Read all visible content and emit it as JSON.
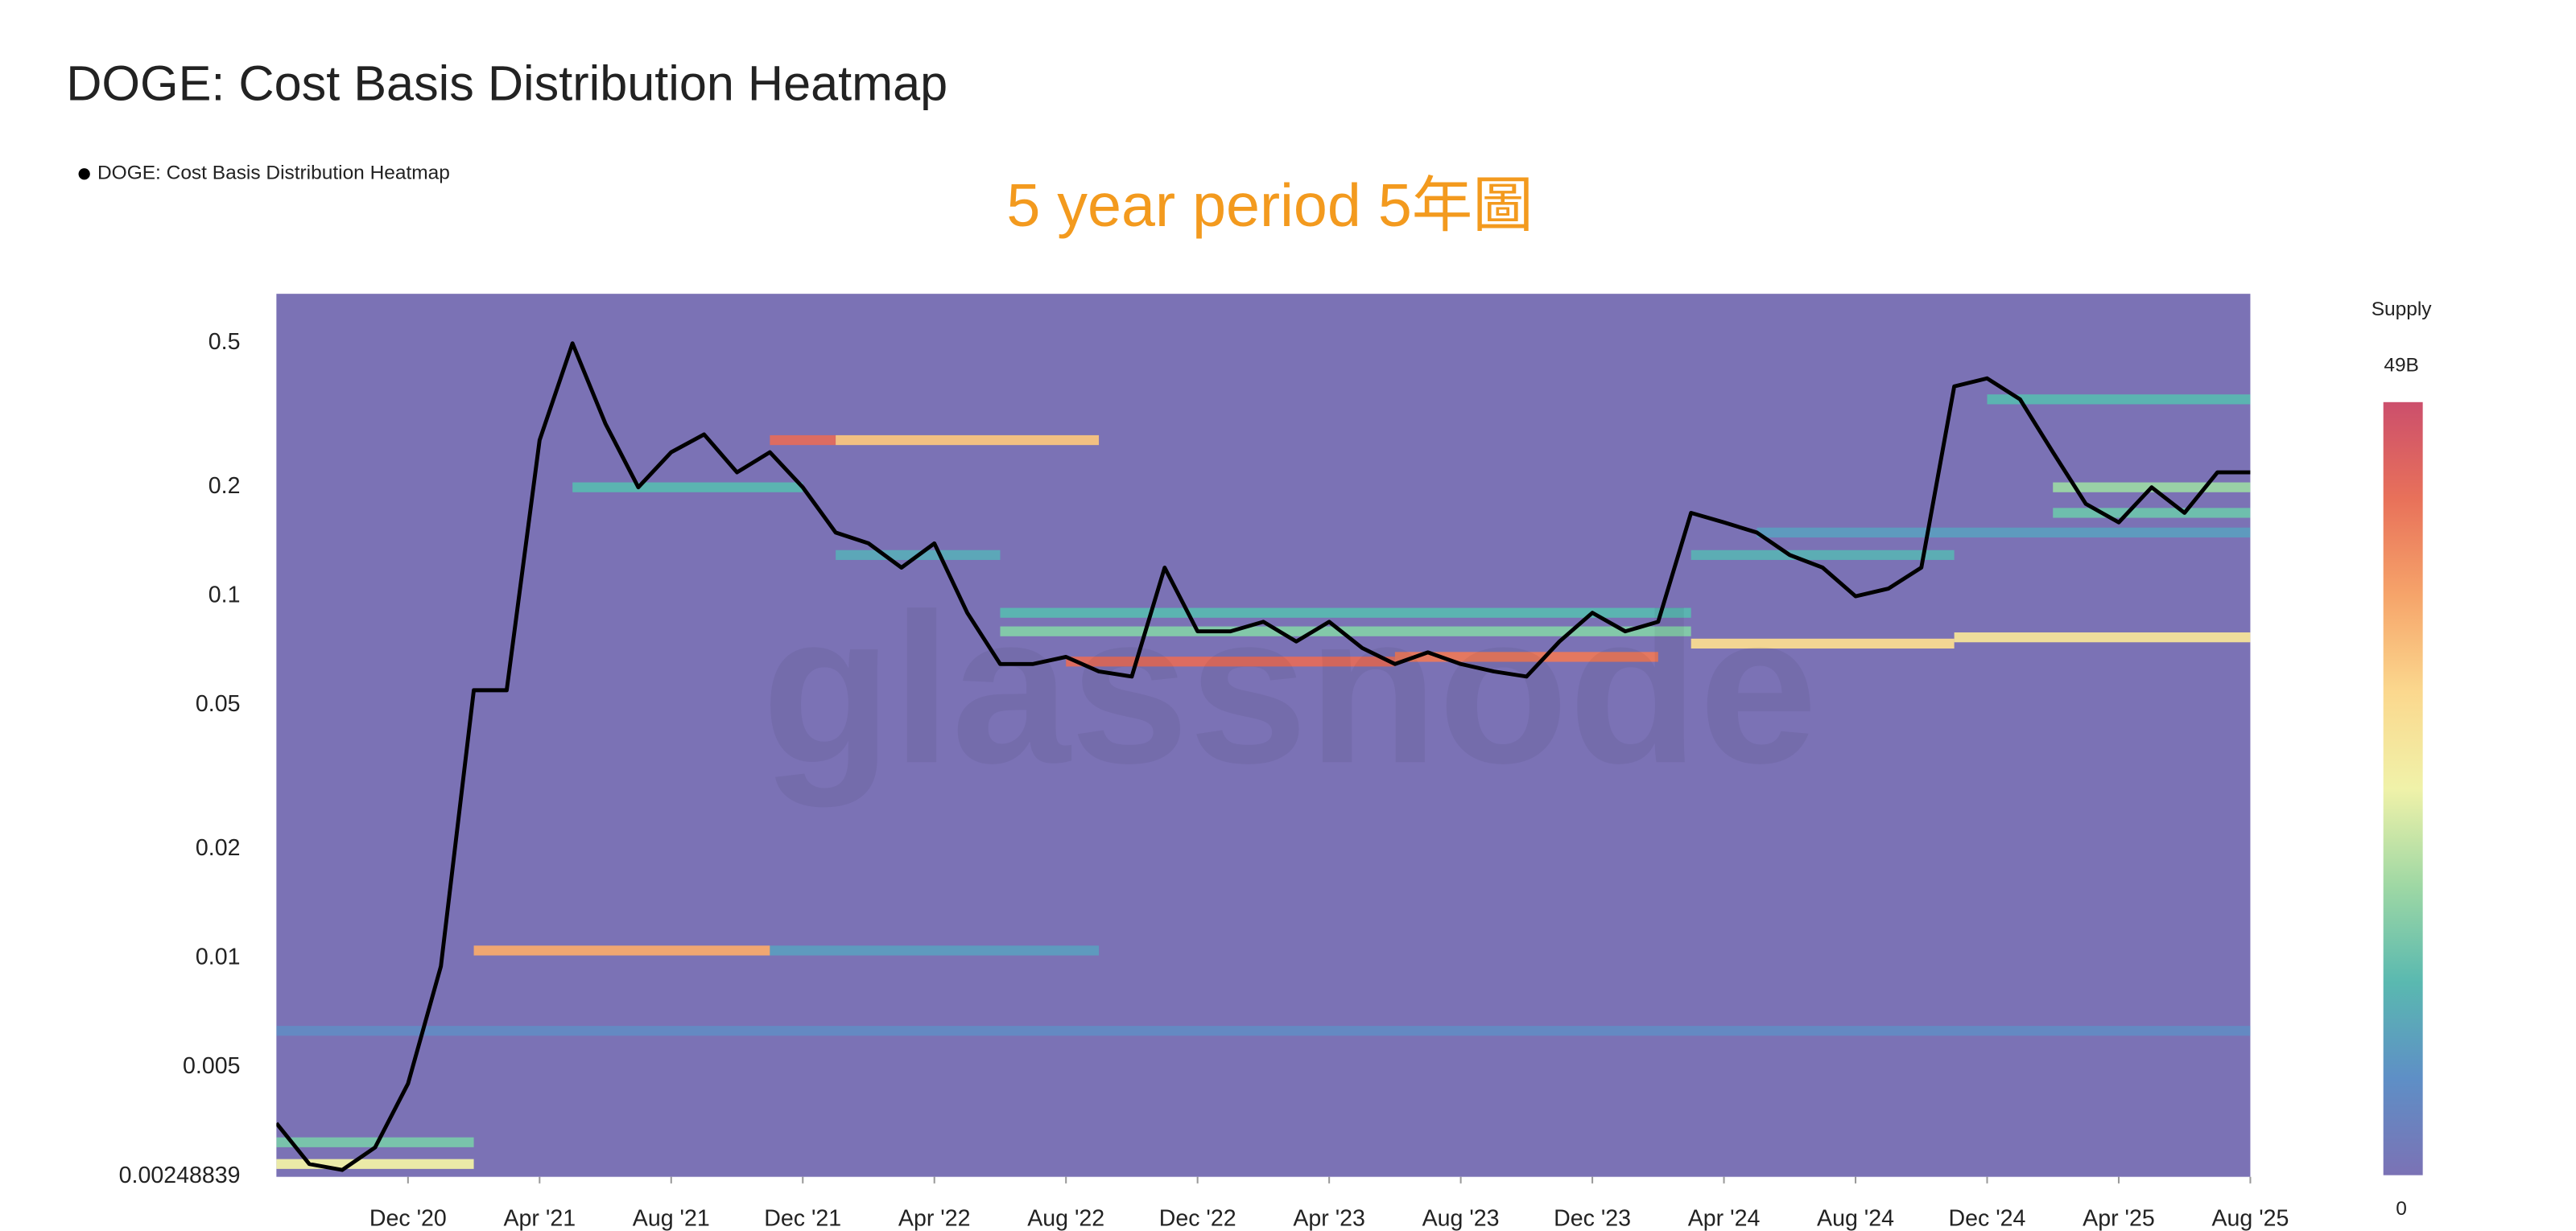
{
  "chart_data": {
    "type": "heatmap",
    "title": "DOGE: Cost Basis Distribution Heatmap",
    "annotation": "5 year period 5年圖",
    "watermark": "glassnode",
    "log_y": true,
    "background_color": "#7b72b5",
    "x": [
      "2020-08",
      "2020-09",
      "2020-10",
      "2020-11",
      "2020-12",
      "2021-01",
      "2021-02",
      "2021-03",
      "2021-04",
      "2021-05",
      "2021-06",
      "2021-07",
      "2021-08",
      "2021-09",
      "2021-10",
      "2021-11",
      "2021-12",
      "2022-01",
      "2022-02",
      "2022-03",
      "2022-04",
      "2022-05",
      "2022-06",
      "2022-07",
      "2022-08",
      "2022-09",
      "2022-10",
      "2022-11",
      "2022-12",
      "2023-01",
      "2023-02",
      "2023-03",
      "2023-04",
      "2023-05",
      "2023-06",
      "2023-07",
      "2023-08",
      "2023-09",
      "2023-10",
      "2023-11",
      "2023-12",
      "2024-01",
      "2024-02",
      "2024-03",
      "2024-04",
      "2024-05",
      "2024-06",
      "2024-07",
      "2024-08",
      "2024-09",
      "2024-10",
      "2024-11",
      "2024-12",
      "2025-01",
      "2025-02",
      "2025-03",
      "2025-04",
      "2025-05",
      "2025-06",
      "2025-07",
      "2025-08"
    ],
    "series": [
      {
        "name": "DOGE: Cost Basis Distribution Heatmap",
        "color": "#000000",
        "values": [
          0.0035,
          0.0027,
          0.0026,
          0.003,
          0.0045,
          0.0095,
          0.055,
          0.055,
          0.27,
          0.5,
          0.3,
          0.2,
          0.25,
          0.28,
          0.22,
          0.25,
          0.2,
          0.15,
          0.14,
          0.12,
          0.14,
          0.09,
          0.065,
          0.065,
          0.068,
          0.062,
          0.06,
          0.12,
          0.08,
          0.08,
          0.085,
          0.075,
          0.085,
          0.072,
          0.065,
          0.07,
          0.065,
          0.062,
          0.06,
          0.075,
          0.09,
          0.08,
          0.085,
          0.17,
          0.16,
          0.15,
          0.13,
          0.12,
          0.1,
          0.105,
          0.12,
          0.38,
          0.4,
          0.35,
          0.25,
          0.18,
          0.16,
          0.2,
          0.17,
          0.22,
          0.22
        ]
      }
    ],
    "bands": [
      {
        "start": "2020-08",
        "end": "2025-08",
        "price": 0.0063,
        "supply": 5000000000
      },
      {
        "start": "2020-08",
        "end": "2021-02",
        "price": 0.0027,
        "supply": 25000000000
      },
      {
        "start": "2020-08",
        "end": "2021-02",
        "price": 0.0031,
        "supply": 15000000000
      },
      {
        "start": "2021-02",
        "end": "2021-11",
        "price": 0.0105,
        "supply": 36000000000
      },
      {
        "start": "2021-11",
        "end": "2022-09",
        "price": 0.0105,
        "supply": 8000000000
      },
      {
        "start": "2021-05",
        "end": "2021-12",
        "price": 0.2,
        "supply": 12000000000
      },
      {
        "start": "2021-11",
        "end": "2022-01",
        "price": 0.27,
        "supply": 44000000000
      },
      {
        "start": "2022-01",
        "end": "2022-09",
        "price": 0.27,
        "supply": 33000000000
      },
      {
        "start": "2022-01",
        "end": "2022-06",
        "price": 0.13,
        "supply": 10000000000
      },
      {
        "start": "2022-06",
        "end": "2024-03",
        "price": 0.09,
        "supply": 12000000000
      },
      {
        "start": "2022-06",
        "end": "2024-03",
        "price": 0.08,
        "supply": 16000000000
      },
      {
        "start": "2022-08",
        "end": "2023-06",
        "price": 0.066,
        "supply": 44000000000
      },
      {
        "start": "2023-06",
        "end": "2024-02",
        "price": 0.068,
        "supply": 42000000000
      },
      {
        "start": "2024-03",
        "end": "2024-11",
        "price": 0.074,
        "supply": 30000000000
      },
      {
        "start": "2024-11",
        "end": "2025-08",
        "price": 0.077,
        "supply": 28000000000
      },
      {
        "start": "2024-03",
        "end": "2024-11",
        "price": 0.13,
        "supply": 11000000000
      },
      {
        "start": "2024-05",
        "end": "2025-08",
        "price": 0.15,
        "supply": 8000000000
      },
      {
        "start": "2024-12",
        "end": "2025-08",
        "price": 0.35,
        "supply": 12000000000
      },
      {
        "start": "2025-02",
        "end": "2025-08",
        "price": 0.2,
        "supply": 18000000000
      },
      {
        "start": "2025-02",
        "end": "2025-08",
        "price": 0.17,
        "supply": 14000000000
      }
    ],
    "xlim": [
      "2020-08",
      "2025-08"
    ],
    "xticks": [
      {
        "value": "2020-12",
        "label": "Dec '20"
      },
      {
        "value": "2021-04",
        "label": "Apr '21"
      },
      {
        "value": "2021-08",
        "label": "Aug '21"
      },
      {
        "value": "2021-12",
        "label": "Dec '21"
      },
      {
        "value": "2022-04",
        "label": "Apr '22"
      },
      {
        "value": "2022-08",
        "label": "Aug '22"
      },
      {
        "value": "2022-12",
        "label": "Dec '22"
      },
      {
        "value": "2023-04",
        "label": "Apr '23"
      },
      {
        "value": "2023-08",
        "label": "Aug '23"
      },
      {
        "value": "2023-12",
        "label": "Dec '23"
      },
      {
        "value": "2024-04",
        "label": "Apr '24"
      },
      {
        "value": "2024-08",
        "label": "Aug '24"
      },
      {
        "value": "2024-12",
        "label": "Dec '24"
      },
      {
        "value": "2025-04",
        "label": "Apr '25"
      },
      {
        "value": "2025-08",
        "label": "Aug '25"
      }
    ],
    "ylim": [
      0.00248839,
      0.685
    ],
    "yticks": [
      0.5,
      0.2,
      0.1,
      0.05,
      0.02,
      0.01,
      0.005,
      0.00248839
    ],
    "colorbar": {
      "title": "Supply",
      "lim": [
        0,
        49000000000
      ],
      "ticks": [
        {
          "value": 49000000000,
          "label": "49B"
        },
        0
      ],
      "colors": [
        "#7b72b5",
        "#5e8fc6",
        "#5ab9b0",
        "#9fd8a4",
        "#f0f2a9",
        "#fbd88e",
        "#f6a46a",
        "#e8715a",
        "#cc4f6c"
      ]
    }
  }
}
